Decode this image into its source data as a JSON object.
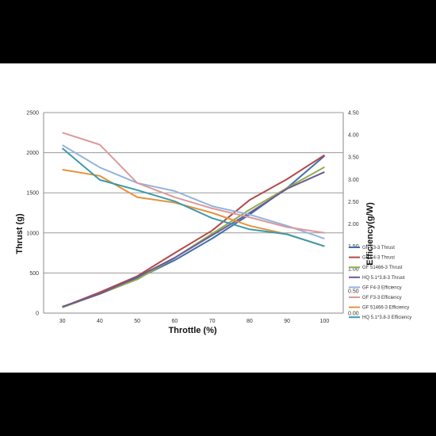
{
  "chart_data": {
    "type": "line",
    "x": [
      30,
      40,
      50,
      60,
      70,
      80,
      90,
      100
    ],
    "xlabel": "Throttle  (%)",
    "ylabel_left": "Thrust  (g)",
    "ylabel_right": "Efficiency(g/W)",
    "ylim_left": [
      0,
      2500
    ],
    "ylim_right": [
      0,
      4.5
    ],
    "left_ticks": [
      "0",
      "500",
      "1000",
      "1500",
      "2000",
      "2500"
    ],
    "right_ticks": [
      "0.00",
      "0.50",
      "1.00",
      "1.50",
      "2.00",
      "2.50",
      "3.00",
      "3.50",
      "4.00",
      "4.50"
    ],
    "grid": "horizontal",
    "legend_position": "right",
    "series": [
      {
        "name": "GF F3-3 Thrust",
        "axis": "left",
        "color": "#3f6faf",
        "values": [
          80,
          240,
          430,
          660,
          930,
          1230,
          1560,
          1960
        ]
      },
      {
        "name": "GF F4-3 Thrust",
        "axis": "left",
        "color": "#b34a4a",
        "values": [
          75,
          260,
          460,
          750,
          1030,
          1410,
          1670,
          1970
        ]
      },
      {
        "name": "GF 51466-3 Thrust",
        "axis": "left",
        "color": "#8fb04a",
        "values": [
          70,
          240,
          420,
          690,
          990,
          1290,
          1560,
          1820
        ]
      },
      {
        "name": "HQ 5.1*3.8-3 Thrust",
        "axis": "left",
        "color": "#6e5896",
        "values": [
          80,
          240,
          450,
          690,
          970,
          1250,
          1550,
          1760
        ]
      },
      {
        "name": "GF F4-3 Efficiency",
        "axis": "right",
        "color": "#93b3dd",
        "values": [
          3.77,
          3.27,
          2.92,
          2.74,
          2.4,
          2.21,
          1.96,
          1.67
        ]
      },
      {
        "name": "GF F3-3 Efficiency",
        "axis": "right",
        "color": "#dc9999",
        "values": [
          4.05,
          3.78,
          2.92,
          2.6,
          2.35,
          2.15,
          1.93,
          1.8
        ]
      },
      {
        "name": "GF 51466-3 Efficiency",
        "axis": "right",
        "color": "#e8913d",
        "values": [
          3.22,
          3.08,
          2.6,
          2.48,
          2.25,
          1.96,
          1.77,
          1.5
        ]
      },
      {
        "name": "HQ 5.1*3.8-3 Efficiency",
        "axis": "right",
        "color": "#3c9aa8",
        "values": [
          3.7,
          2.99,
          2.76,
          2.51,
          2.13,
          1.88,
          1.77,
          1.5
        ]
      }
    ]
  }
}
